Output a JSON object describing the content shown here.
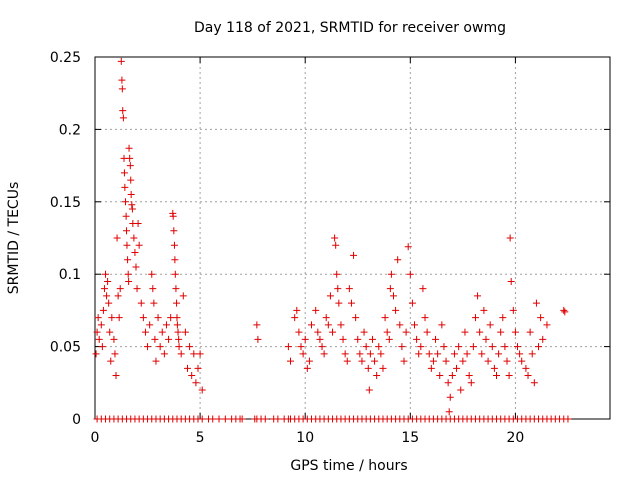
{
  "chart_data": {
    "type": "scatter",
    "title": "Day 118 of 2021, SRMTID for receiver owmg",
    "xlabel": "GPS time / hours",
    "ylabel": "SRMTID / TECUs",
    "xlim": [
      0,
      24.5
    ],
    "ylim": [
      0,
      0.25
    ],
    "grid": true,
    "marker": "+",
    "color": "#e00000",
    "x_ticks": [
      {
        "value": 0,
        "label": "0"
      },
      {
        "value": 5,
        "label": "5"
      },
      {
        "value": 10,
        "label": "10"
      },
      {
        "value": 15,
        "label": "15"
      },
      {
        "value": 20,
        "label": "20"
      }
    ],
    "y_ticks": [
      {
        "value": 0,
        "label": "0"
      },
      {
        "value": 0.05,
        "label": "0.05"
      },
      {
        "value": 0.1,
        "label": "0.1"
      },
      {
        "value": 0.15,
        "label": "0.15"
      },
      {
        "value": 0.2,
        "label": "0.2"
      },
      {
        "value": 0.25,
        "label": "0.25"
      }
    ],
    "series": [
      {
        "name": "SRMTID",
        "points": [
          [
            0.05,
            0.045
          ],
          [
            0.1,
            0.06
          ],
          [
            0.15,
            0.07
          ],
          [
            0.2,
            0.055
          ],
          [
            0.3,
            0.065
          ],
          [
            0.35,
            0.05
          ],
          [
            0.4,
            0.075
          ],
          [
            0.45,
            0.09
          ],
          [
            0.5,
            0.1
          ],
          [
            0.55,
            0.085
          ],
          [
            0.6,
            0.095
          ],
          [
            0.65,
            0.08
          ],
          [
            0.7,
            0.06
          ],
          [
            0.75,
            0.04
          ],
          [
            0.8,
            0.07
          ],
          [
            0.9,
            0.055
          ],
          [
            0.95,
            0.045
          ],
          [
            1.0,
            0.03
          ],
          [
            1.05,
            0.125
          ],
          [
            1.1,
            0.085
          ],
          [
            1.15,
            0.07
          ],
          [
            1.2,
            0.09
          ],
          [
            1.25,
            0.247
          ],
          [
            1.28,
            0.234
          ],
          [
            1.3,
            0.228
          ],
          [
            1.32,
            0.213
          ],
          [
            1.35,
            0.208
          ],
          [
            1.38,
            0.18
          ],
          [
            1.4,
            0.17
          ],
          [
            1.42,
            0.16
          ],
          [
            1.45,
            0.15
          ],
          [
            1.48,
            0.14
          ],
          [
            1.5,
            0.13
          ],
          [
            1.52,
            0.12
          ],
          [
            1.55,
            0.11
          ],
          [
            1.58,
            0.1
          ],
          [
            1.6,
            0.095
          ],
          [
            1.62,
            0.187
          ],
          [
            1.65,
            0.18
          ],
          [
            1.68,
            0.175
          ],
          [
            1.7,
            0.165
          ],
          [
            1.72,
            0.155
          ],
          [
            1.75,
            0.148
          ],
          [
            1.78,
            0.145
          ],
          [
            1.8,
            0.135
          ],
          [
            1.85,
            0.125
          ],
          [
            1.9,
            0.115
          ],
          [
            1.95,
            0.105
          ],
          [
            2.0,
            0.09
          ],
          [
            2.05,
            0.135
          ],
          [
            2.1,
            0.12
          ],
          [
            2.2,
            0.08
          ],
          [
            2.3,
            0.07
          ],
          [
            2.4,
            0.06
          ],
          [
            2.5,
            0.05
          ],
          [
            2.6,
            0.065
          ],
          [
            2.7,
            0.1
          ],
          [
            2.75,
            0.09
          ],
          [
            2.8,
            0.08
          ],
          [
            2.85,
            0.055
          ],
          [
            2.9,
            0.04
          ],
          [
            3.0,
            0.07
          ],
          [
            3.1,
            0.05
          ],
          [
            3.2,
            0.06
          ],
          [
            3.3,
            0.045
          ],
          [
            3.4,
            0.065
          ],
          [
            3.5,
            0.055
          ],
          [
            3.6,
            0.07
          ],
          [
            3.7,
            0.142
          ],
          [
            3.72,
            0.14
          ],
          [
            3.75,
            0.13
          ],
          [
            3.78,
            0.12
          ],
          [
            3.8,
            0.11
          ],
          [
            3.82,
            0.1
          ],
          [
            3.85,
            0.09
          ],
          [
            3.88,
            0.08
          ],
          [
            3.9,
            0.07
          ],
          [
            3.92,
            0.065
          ],
          [
            3.95,
            0.06
          ],
          [
            3.98,
            0.055
          ],
          [
            4.0,
            0.05
          ],
          [
            4.1,
            0.045
          ],
          [
            4.2,
            0.085
          ],
          [
            4.3,
            0.06
          ],
          [
            4.4,
            0.035
          ],
          [
            4.5,
            0.05
          ],
          [
            4.6,
            0.03
          ],
          [
            4.7,
            0.045
          ],
          [
            4.8,
            0.025
          ],
          [
            4.9,
            0.035
          ],
          [
            5.0,
            0.045
          ],
          [
            5.1,
            0.02
          ],
          [
            7.7,
            0.065
          ],
          [
            7.75,
            0.055
          ],
          [
            9.2,
            0.05
          ],
          [
            9.3,
            0.04
          ],
          [
            9.5,
            0.07
          ],
          [
            9.6,
            0.075
          ],
          [
            9.7,
            0.06
          ],
          [
            9.8,
            0.05
          ],
          [
            9.9,
            0.045
          ],
          [
            10.0,
            0.055
          ],
          [
            10.1,
            0.035
          ],
          [
            10.2,
            0.04
          ],
          [
            10.3,
            0.065
          ],
          [
            10.5,
            0.075
          ],
          [
            10.6,
            0.06
          ],
          [
            10.7,
            0.055
          ],
          [
            10.8,
            0.05
          ],
          [
            10.9,
            0.045
          ],
          [
            11.0,
            0.07
          ],
          [
            11.1,
            0.065
          ],
          [
            11.2,
            0.085
          ],
          [
            11.3,
            0.06
          ],
          [
            11.4,
            0.125
          ],
          [
            11.45,
            0.12
          ],
          [
            11.5,
            0.1
          ],
          [
            11.55,
            0.09
          ],
          [
            11.6,
            0.08
          ],
          [
            11.7,
            0.065
          ],
          [
            11.8,
            0.055
          ],
          [
            11.9,
            0.045
          ],
          [
            12.0,
            0.04
          ],
          [
            12.1,
            0.09
          ],
          [
            12.2,
            0.08
          ],
          [
            12.3,
            0.113
          ],
          [
            12.4,
            0.07
          ],
          [
            12.5,
            0.055
          ],
          [
            12.6,
            0.045
          ],
          [
            12.7,
            0.04
          ],
          [
            12.8,
            0.06
          ],
          [
            12.9,
            0.05
          ],
          [
            13.0,
            0.035
          ],
          [
            13.05,
            0.02
          ],
          [
            13.1,
            0.045
          ],
          [
            13.2,
            0.055
          ],
          [
            13.3,
            0.04
          ],
          [
            13.4,
            0.03
          ],
          [
            13.5,
            0.05
          ],
          [
            13.6,
            0.045
          ],
          [
            13.7,
            0.035
          ],
          [
            13.8,
            0.07
          ],
          [
            13.9,
            0.06
          ],
          [
            14.0,
            0.055
          ],
          [
            14.05,
            0.09
          ],
          [
            14.1,
            0.1
          ],
          [
            14.2,
            0.085
          ],
          [
            14.3,
            0.075
          ],
          [
            14.4,
            0.11
          ],
          [
            14.5,
            0.065
          ],
          [
            14.6,
            0.05
          ],
          [
            14.7,
            0.04
          ],
          [
            14.8,
            0.06
          ],
          [
            14.9,
            0.119
          ],
          [
            15.0,
            0.1
          ],
          [
            15.1,
            0.08
          ],
          [
            15.2,
            0.065
          ],
          [
            15.3,
            0.055
          ],
          [
            15.4,
            0.045
          ],
          [
            15.5,
            0.05
          ],
          [
            15.6,
            0.09
          ],
          [
            15.7,
            0.07
          ],
          [
            15.8,
            0.06
          ],
          [
            15.9,
            0.045
          ],
          [
            16.0,
            0.035
          ],
          [
            16.1,
            0.04
          ],
          [
            16.2,
            0.055
          ],
          [
            16.3,
            0.045
          ],
          [
            16.4,
            0.03
          ],
          [
            16.5,
            0.065
          ],
          [
            16.6,
            0.05
          ],
          [
            16.7,
            0.04
          ],
          [
            16.8,
            0.025
          ],
          [
            16.85,
            0.005
          ],
          [
            16.9,
            0.015
          ],
          [
            17.0,
            0.03
          ],
          [
            17.1,
            0.045
          ],
          [
            17.2,
            0.035
          ],
          [
            17.3,
            0.05
          ],
          [
            17.4,
            0.02
          ],
          [
            17.5,
            0.04
          ],
          [
            17.6,
            0.06
          ],
          [
            17.7,
            0.045
          ],
          [
            17.8,
            0.03
          ],
          [
            17.9,
            0.025
          ],
          [
            18.0,
            0.05
          ],
          [
            18.1,
            0.07
          ],
          [
            18.2,
            0.085
          ],
          [
            18.3,
            0.06
          ],
          [
            18.4,
            0.045
          ],
          [
            18.5,
            0.075
          ],
          [
            18.6,
            0.055
          ],
          [
            18.7,
            0.04
          ],
          [
            18.8,
            0.065
          ],
          [
            18.9,
            0.05
          ],
          [
            19.0,
            0.035
          ],
          [
            19.1,
            0.03
          ],
          [
            19.2,
            0.045
          ],
          [
            19.3,
            0.06
          ],
          [
            19.4,
            0.07
          ],
          [
            19.5,
            0.05
          ],
          [
            19.6,
            0.04
          ],
          [
            19.7,
            0.03
          ],
          [
            19.75,
            0.125
          ],
          [
            19.8,
            0.095
          ],
          [
            19.9,
            0.075
          ],
          [
            20.0,
            0.06
          ],
          [
            20.1,
            0.05
          ],
          [
            20.2,
            0.045
          ],
          [
            20.3,
            0.04
          ],
          [
            20.5,
            0.035
          ],
          [
            20.6,
            0.03
          ],
          [
            20.7,
            0.06
          ],
          [
            20.8,
            0.045
          ],
          [
            20.9,
            0.025
          ],
          [
            21.0,
            0.08
          ],
          [
            21.1,
            0.05
          ],
          [
            21.2,
            0.07
          ],
          [
            21.3,
            0.055
          ],
          [
            21.5,
            0.065
          ],
          [
            22.3,
            0.075
          ],
          [
            22.35,
            0.074
          ]
        ],
        "zero_points_x": [
          0.1,
          0.3,
          0.5,
          0.7,
          0.9,
          1.1,
          1.3,
          1.5,
          1.7,
          1.9,
          2.1,
          2.3,
          2.5,
          2.7,
          2.9,
          3.1,
          3.3,
          3.5,
          3.7,
          3.9,
          4.1,
          4.3,
          4.5,
          4.7,
          4.9,
          5.1,
          5.4,
          5.6,
          5.9,
          6.2,
          6.5,
          6.7,
          6.9,
          7.0,
          7.6,
          7.7,
          7.9,
          8.1,
          8.5,
          8.7,
          9.0,
          9.2,
          9.3,
          9.5,
          9.7,
          9.9,
          10.1,
          10.3,
          10.5,
          10.7,
          10.9,
          11.1,
          11.3,
          11.5,
          11.7,
          11.9,
          12.1,
          12.3,
          12.5,
          12.7,
          12.9,
          13.1,
          13.3,
          13.5,
          13.7,
          13.9,
          14.1,
          14.3,
          14.5,
          14.7,
          14.9,
          15.1,
          15.3,
          15.5,
          15.7,
          15.9,
          16.1,
          16.3,
          16.5,
          16.7,
          16.9,
          17.1,
          17.3,
          17.5,
          17.7,
          17.9,
          18.1,
          18.3,
          18.5,
          18.7,
          18.9,
          19.1,
          19.3,
          19.5,
          19.7,
          19.9,
          20.1,
          20.3,
          20.5,
          20.7,
          20.9,
          21.1,
          21.3,
          21.5,
          21.7,
          21.9,
          22.1,
          22.3,
          22.5
        ]
      }
    ]
  }
}
